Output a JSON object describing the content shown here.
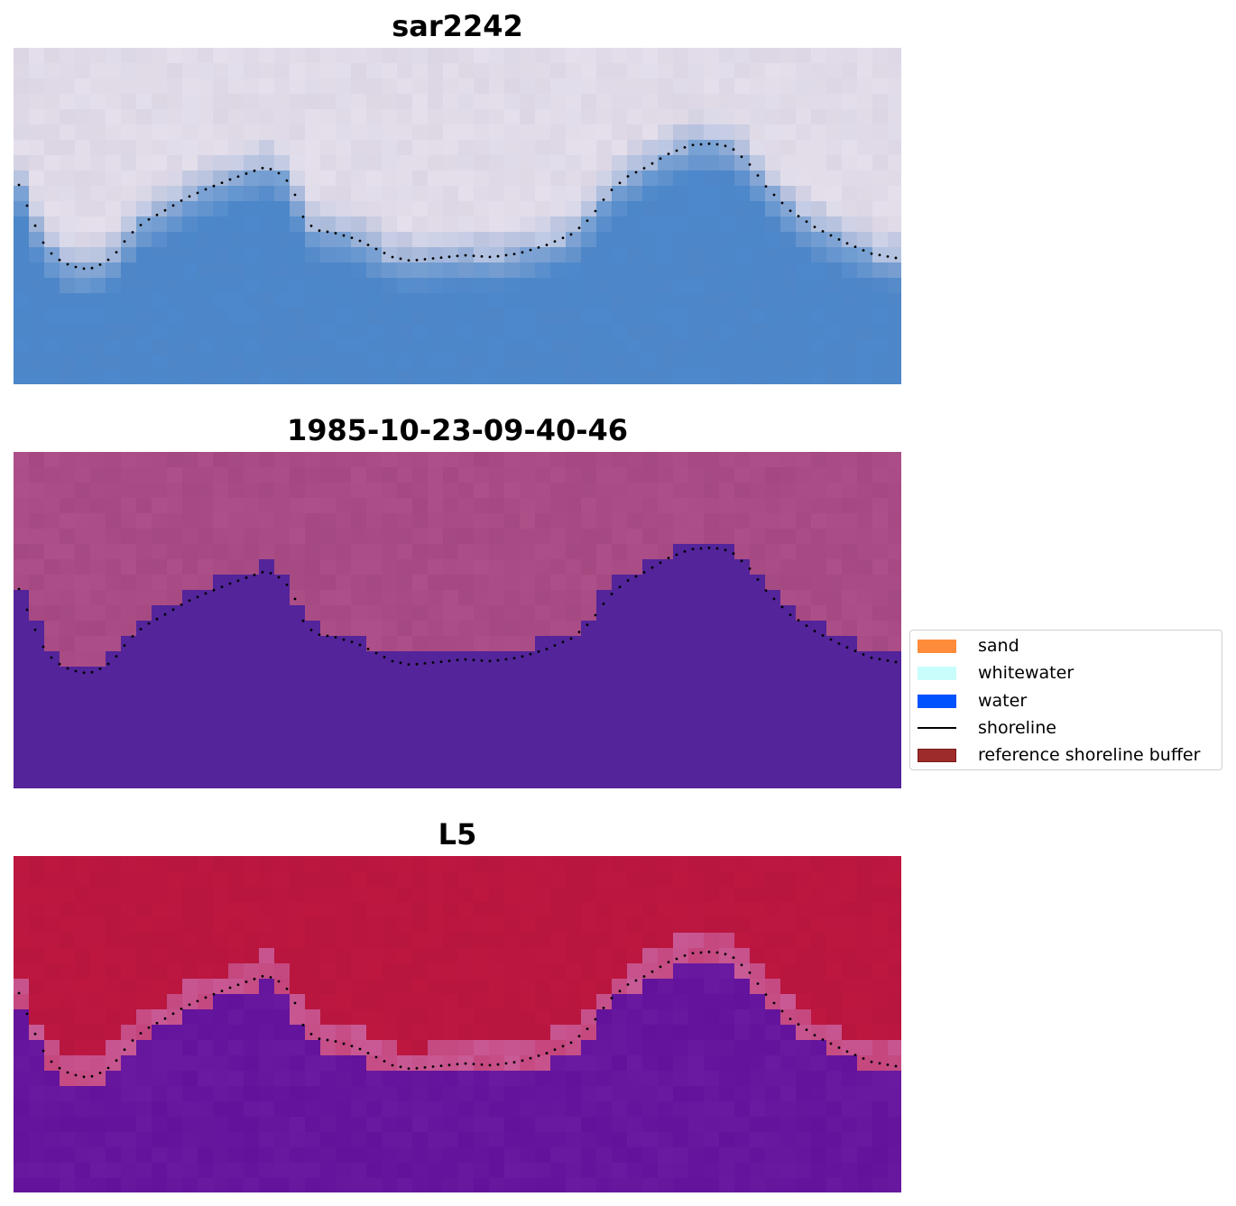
{
  "panels": [
    {
      "title": "sar2242"
    },
    {
      "title": "1985-10-23-09-40-46"
    },
    {
      "title": "L5"
    }
  ],
  "legend": {
    "items": [
      {
        "label": "sand",
        "color": "#ff8c3b",
        "kind": "patch"
      },
      {
        "label": "whitewater",
        "color": "#c8fdfb",
        "kind": "patch"
      },
      {
        "label": "water",
        "color": "#0052ff",
        "kind": "patch"
      },
      {
        "label": "shoreline",
        "color": "#000000",
        "kind": "line"
      },
      {
        "label": "reference shoreline buffer",
        "color": "#9e2b2b",
        "kind": "patch-edge"
      }
    ]
  },
  "colors": {
    "rgb_land": "#dcd6e4",
    "rgb_water": "#4e86c8",
    "class_land": "#ad4f88",
    "class_water": "#53249a",
    "mndwi_land": "#bd1740",
    "mndwi_water": "#6a1aa0",
    "shoreline_dots": "#000000"
  }
}
